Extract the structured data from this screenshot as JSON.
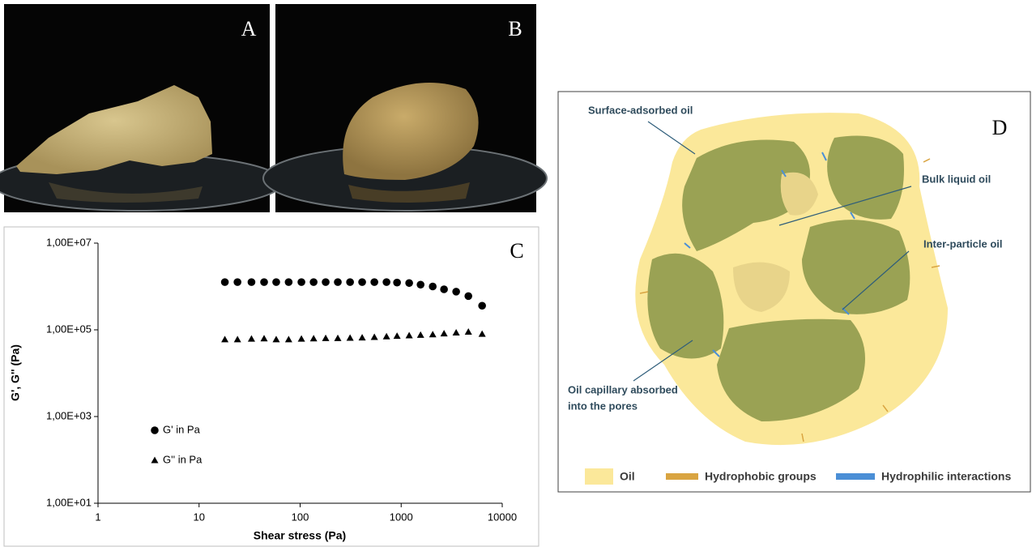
{
  "photos": [
    {
      "label": "A"
    },
    {
      "label": "B"
    }
  ],
  "chart_data": {
    "type": "scatter",
    "panel_label": "C",
    "x_label": "Shear stress (Pa)",
    "y_label": "G', G'' (Pa)",
    "xscale": "log",
    "yscale": "log",
    "xlim": [
      1,
      10000
    ],
    "xticks": [
      1,
      10,
      100,
      1000,
      10000
    ],
    "ylim": [
      10,
      10000000
    ],
    "yticks": [
      {
        "value": 10,
        "label": "1,00E+01"
      },
      {
        "value": 1000,
        "label": "1,00E+03"
      },
      {
        "value": 100000,
        "label": "1,00E+05"
      },
      {
        "value": 10000000,
        "label": "1,00E+07"
      }
    ],
    "legend": "lower-left",
    "x": [
      18,
      24,
      33,
      44,
      58,
      77,
      103,
      136,
      179,
      236,
      312,
      411,
      543,
      716,
      910,
      1200,
      1556,
      2052,
      2655,
      3501,
      4624,
      6323
    ],
    "series": [
      {
        "name": "G' in Pa",
        "color": "#000000",
        "marker": "circle",
        "values": [
          1260000,
          1260000,
          1260000,
          1260000,
          1260000,
          1260000,
          1260000,
          1260000,
          1260000,
          1260000,
          1260000,
          1260000,
          1260000,
          1260000,
          1230000,
          1200000,
          1100000,
          1000000,
          860000,
          760000,
          600000,
          360000
        ]
      },
      {
        "name": "G'' in Pa",
        "color": "#000000",
        "marker": "triangle",
        "values": [
          60000,
          60000,
          62000,
          63000,
          60000,
          60000,
          62000,
          63000,
          64000,
          64000,
          65000,
          66000,
          68000,
          70000,
          72000,
          74000,
          76000,
          78000,
          82000,
          86000,
          90000,
          80000
        ]
      }
    ]
  },
  "diagram": {
    "panel_label": "D",
    "callouts": [
      {
        "label": [
          "Surface-adsorbed oil"
        ]
      },
      {
        "label": [
          "Bulk liquid oil"
        ]
      },
      {
        "label": [
          "Inter-particle oil"
        ]
      },
      {
        "label": [
          "Oil capillary absorbed",
          "into the pores"
        ]
      }
    ],
    "legend": [
      {
        "label": "Oil",
        "color": "#fbe89a"
      },
      {
        "label": "Hydrophobic groups",
        "color": "#d9a441"
      },
      {
        "label": "Hydrophilic interactions",
        "color": "#4b8fd6"
      }
    ]
  }
}
